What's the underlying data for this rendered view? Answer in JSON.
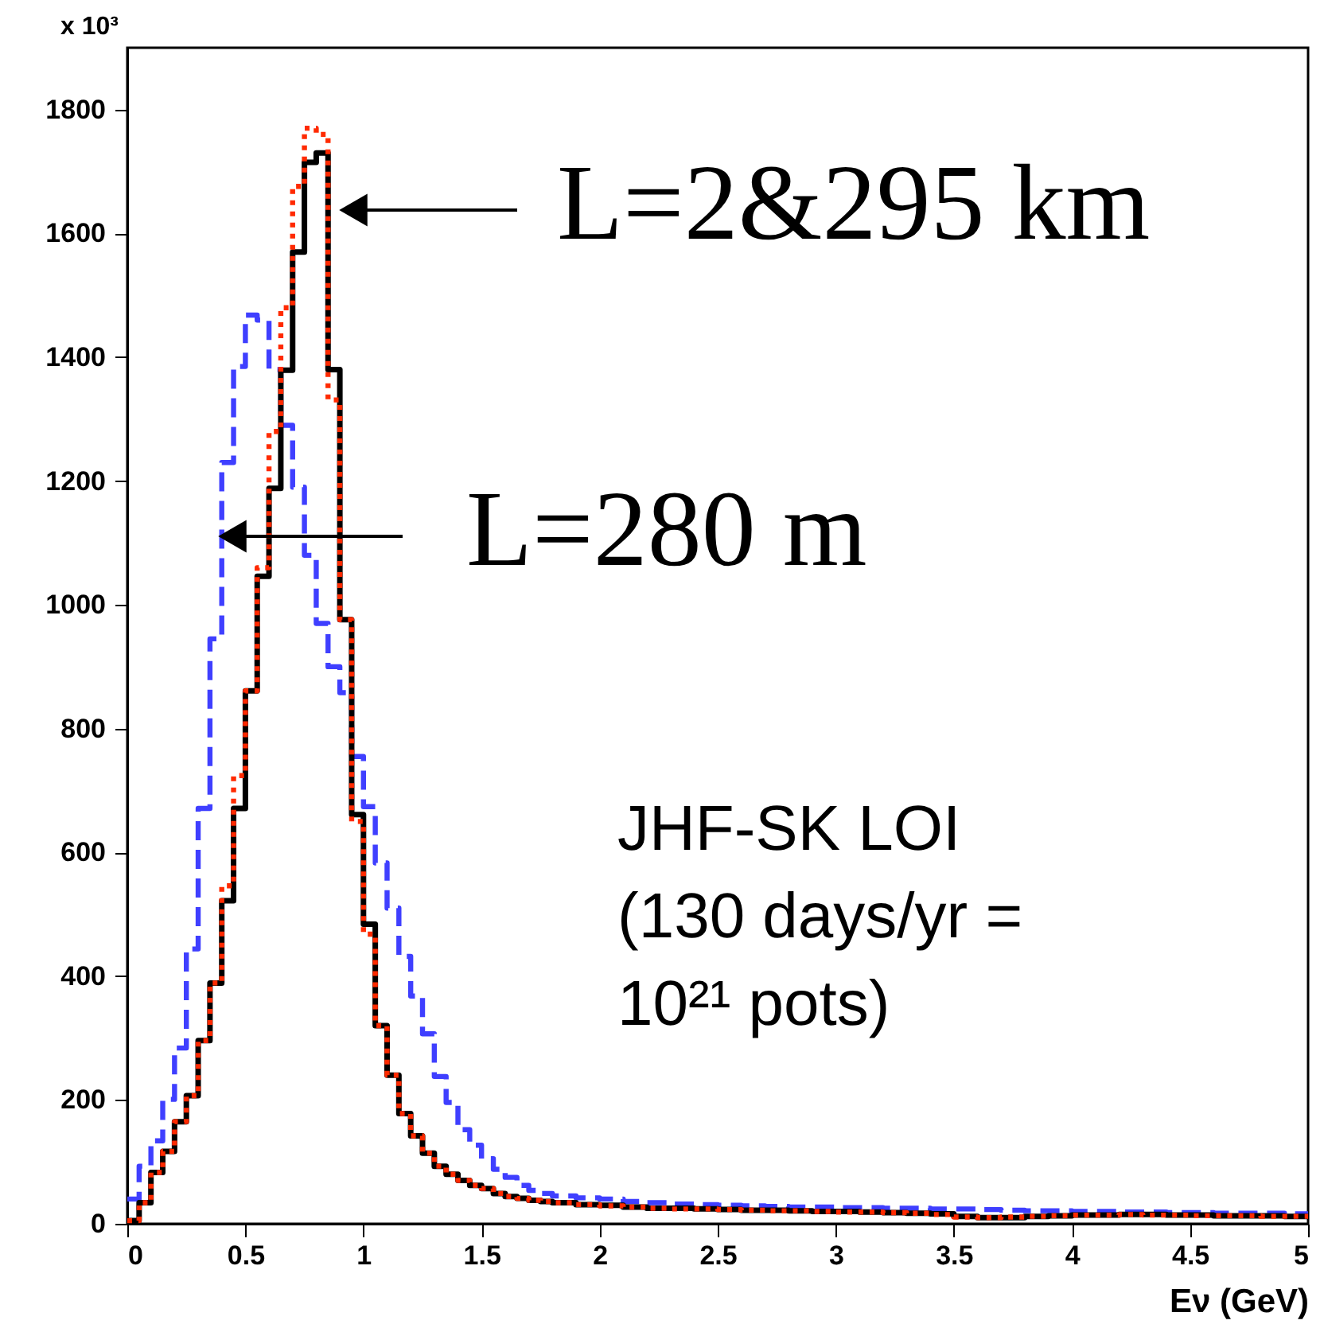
{
  "chart_data": {
    "type": "step",
    "xlabel": "Eν (GeV)",
    "ylabel": "x 10³",
    "x": [
      0,
      0.05,
      0.1,
      0.15,
      0.2,
      0.25,
      0.3,
      0.35,
      0.4,
      0.45,
      0.5,
      0.55,
      0.6,
      0.65,
      0.7,
      0.75,
      0.8,
      0.85,
      0.9,
      0.95,
      1,
      1.05,
      1.1,
      1.15,
      1.2,
      1.25,
      1.3,
      1.35,
      1.4,
      1.45,
      1.5,
      1.55,
      1.6,
      1.65,
      1.7,
      1.75,
      1.8,
      1.85,
      1.9,
      1.95,
      2,
      2.1,
      2.2,
      2.3,
      2.4,
      2.5,
      2.6,
      2.7,
      2.8,
      2.9,
      3,
      3.1,
      3.2,
      3.3,
      3.4,
      3.5,
      3.6,
      3.7,
      3.8,
      3.9,
      4,
      4.1,
      4.2,
      4.3,
      4.4,
      4.5,
      4.6,
      4.7,
      4.8,
      4.9,
      5
    ],
    "series": [
      {
        "color": "#3f3fff",
        "line_style": "dashed",
        "values": [
          40,
          93,
          134,
          201,
          284,
          444,
          671,
          945,
          1230,
          1385,
          1468,
          1460,
          1380,
          1290,
          1190,
          1080,
          970,
          900,
          858,
          755,
          674,
          583,
          510,
          432,
          368,
          307,
          238,
          196,
          152,
          127,
          105,
          88,
          75,
          62,
          54,
          49,
          45,
          45,
          42,
          42,
          40,
          36,
          34,
          32,
          31,
          30,
          29,
          28,
          27,
          27,
          26,
          26,
          25,
          25,
          24,
          24,
          23,
          22,
          21,
          21,
          20,
          20,
          19,
          19,
          18,
          18,
          17,
          17,
          17,
          16,
          16
        ]
      },
      {
        "color": "#000000",
        "line_style": "solid",
        "values": [
          5,
          34,
          83,
          117,
          165,
          207,
          296,
          389,
          522,
          671,
          861,
          1046,
          1188,
          1379,
          1570,
          1715,
          1730,
          1380,
          976,
          661,
          484,
          320,
          240,
          178,
          142,
          114,
          93,
          80,
          70,
          62,
          57,
          49,
          44,
          41,
          38,
          36,
          34,
          34,
          31,
          31,
          30,
          27,
          25,
          25,
          24,
          23,
          22,
          22,
          21,
          20,
          20,
          19,
          18,
          17,
          16,
          12,
          10,
          10,
          12,
          13,
          14,
          14,
          15,
          15,
          14,
          14,
          13,
          13,
          13,
          12,
          12
        ]
      },
      {
        "color": "#ff2a00",
        "line_style": "dotted",
        "values": [
          5,
          34,
          83,
          117,
          165,
          207,
          296,
          389,
          546,
          724,
          861,
          1060,
          1280,
          1480,
          1676,
          1770,
          1760,
          1331,
          976,
          650,
          468,
          320,
          240,
          178,
          142,
          114,
          93,
          80,
          70,
          62,
          57,
          49,
          44,
          41,
          38,
          36,
          34,
          34,
          31,
          31,
          29,
          27,
          25,
          24,
          24,
          23,
          22,
          21,
          21,
          20,
          19,
          19,
          18,
          17,
          15,
          11,
          10,
          11,
          12,
          13,
          14,
          14,
          15,
          14,
          14,
          13,
          13,
          13,
          12,
          12,
          12
        ]
      }
    ],
    "xlim": [
      0,
      5
    ],
    "xticks": [
      0,
      0.5,
      1,
      1.5,
      2,
      2.5,
      3,
      3.5,
      4,
      4.5,
      5
    ],
    "ylim": [
      0,
      1900
    ],
    "yticks": [
      0,
      200,
      400,
      600,
      800,
      1000,
      1200,
      1400,
      1600,
      1800
    ],
    "annotations": [
      "L=2&295 km",
      "L=280 m",
      "JHF-SK LOI",
      "(130 days/yr =",
      "10²¹ pots)"
    ]
  }
}
